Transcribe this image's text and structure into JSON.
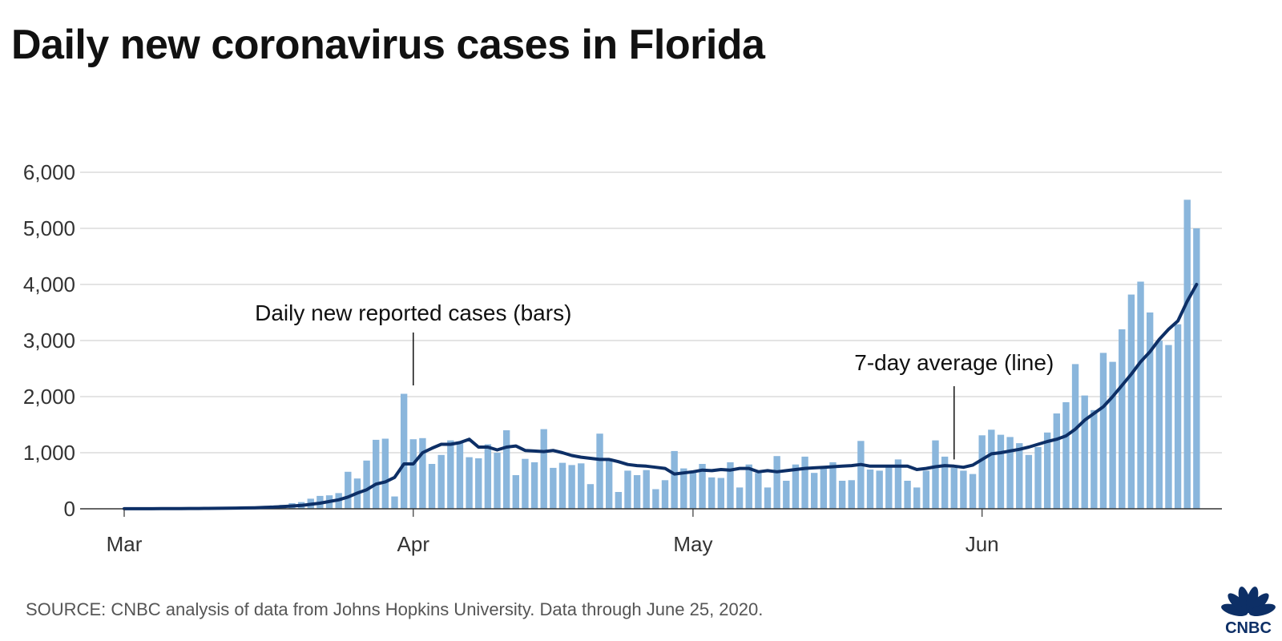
{
  "title": "Daily new coronavirus cases in Florida",
  "source": "SOURCE: CNBC analysis of data from Johns Hopkins University. Data through June 25, 2020.",
  "logo_text": "CNBC",
  "colors": {
    "bar": "#8ab6dc",
    "line": "#0d2f66",
    "grid": "#d4d4d4",
    "axis": "#333333"
  },
  "chart_data": {
    "type": "bar",
    "x_start": "2020-03-01",
    "x_end": "2020-06-25",
    "ylim": [
      0,
      6000
    ],
    "y_ticks": [
      {
        "value": 0,
        "label": "0"
      },
      {
        "value": 1000,
        "label": "1,000"
      },
      {
        "value": 2000,
        "label": "2,000"
      },
      {
        "value": 3000,
        "label": "3,000"
      },
      {
        "value": 4000,
        "label": "4,000"
      },
      {
        "value": 5000,
        "label": "5,000"
      },
      {
        "value": 6000,
        "label": "6,000"
      }
    ],
    "x_ticks": [
      {
        "date": "2020-03-01",
        "label": "Mar"
      },
      {
        "date": "2020-04-01",
        "label": "Apr"
      },
      {
        "date": "2020-05-01",
        "label": "May"
      },
      {
        "date": "2020-06-01",
        "label": "Jun"
      }
    ],
    "grid": true,
    "series": [
      {
        "name": "Daily new reported cases (bars)",
        "type": "bar",
        "values": [
          2,
          0,
          2,
          5,
          3,
          2,
          5,
          10,
          12,
          10,
          15,
          20,
          25,
          30,
          40,
          50,
          60,
          70,
          100,
          120,
          180,
          230,
          240,
          280,
          660,
          540,
          860,
          1230,
          1250,
          220,
          2050,
          1240,
          1260,
          800,
          960,
          1220,
          1200,
          920,
          900,
          1150,
          1000,
          1400,
          600,
          890,
          830,
          1420,
          730,
          820,
          780,
          810,
          440,
          1340,
          890,
          300,
          680,
          600,
          690,
          350,
          510,
          1030,
          720,
          680,
          800,
          560,
          550,
          830,
          380,
          790,
          640,
          380,
          940,
          500,
          790,
          930,
          640,
          720,
          830,
          500,
          510,
          1210,
          700,
          680,
          760,
          880,
          500,
          380,
          680,
          1220,
          930,
          730,
          680,
          620,
          1310,
          1410,
          1320,
          1280,
          1170,
          960,
          1100,
          1360,
          1700,
          1900,
          2580,
          2020,
          1760,
          2780,
          2620,
          3200,
          3820,
          4050,
          3500,
          3000,
          2920,
          3290,
          5510,
          5000
        ]
      },
      {
        "name": "7-day average (line)",
        "type": "line",
        "values": [
          2,
          2,
          2,
          2,
          3,
          3,
          3,
          5,
          6,
          7,
          9,
          11,
          13,
          16,
          19,
          25,
          30,
          40,
          50,
          60,
          80,
          100,
          130,
          160,
          210,
          280,
          340,
          440,
          480,
          560,
          800,
          800,
          1000,
          1080,
          1150,
          1150,
          1180,
          1240,
          1100,
          1100,
          1050,
          1100,
          1120,
          1040,
          1030,
          1020,
          1040,
          1000,
          950,
          920,
          900,
          880,
          880,
          840,
          790,
          770,
          760,
          740,
          720,
          620,
          640,
          660,
          690,
          680,
          700,
          690,
          720,
          720,
          660,
          680,
          660,
          680,
          700,
          720,
          730,
          740,
          750,
          760,
          770,
          790,
          760,
          760,
          760,
          760,
          760,
          700,
          720,
          750,
          770,
          760,
          740,
          780,
          880,
          980,
          1000,
          1030,
          1060,
          1100,
          1150,
          1200,
          1240,
          1300,
          1420,
          1580,
          1700,
          1820,
          2000,
          2200,
          2400,
          2620,
          2800,
          3020,
          3200,
          3350,
          3700,
          4000
        ]
      }
    ],
    "annotations": [
      {
        "text": "Daily new reported cases (bars)",
        "target_date": "2020-04-01",
        "target_value": 2200
      },
      {
        "text": "7-day average (line)",
        "target_date": "2020-05-29",
        "target_value": 880
      }
    ]
  }
}
